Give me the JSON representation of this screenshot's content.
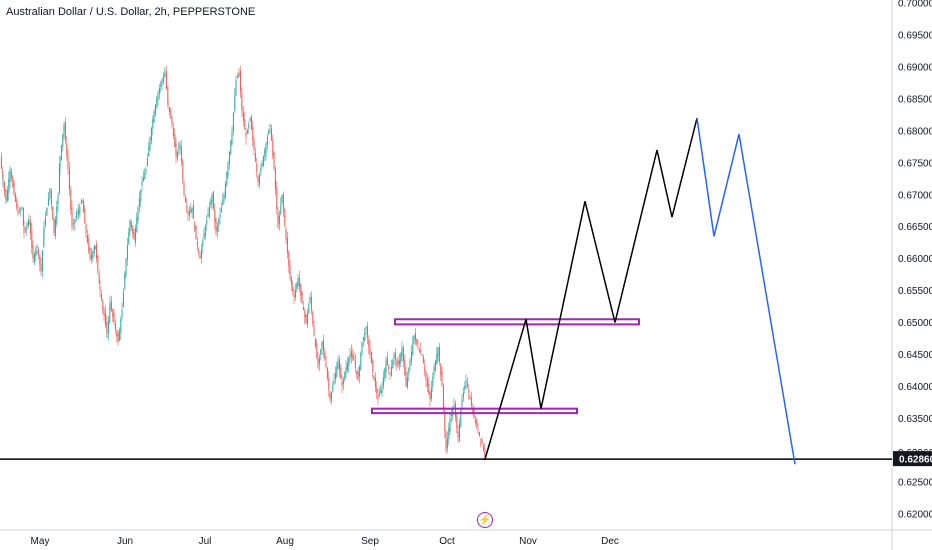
{
  "header": {
    "title": "Australian Dollar / U.S. Dollar, 2h, PEPPERSTONE"
  },
  "chart_data": {
    "type": "line",
    "title": "Australian Dollar / U.S. Dollar, 2h, PEPPERSTONE",
    "ylim": [
      0.6175,
      0.7005
    ],
    "y_ticks": [
      "0.70000",
      "0.69500",
      "0.69000",
      "0.68500",
      "0.68000",
      "0.67500",
      "0.67000",
      "0.66500",
      "0.66000",
      "0.65500",
      "0.65000",
      "0.64500",
      "0.64000",
      "0.63500",
      "0.62963",
      "0.62500",
      "0.62000"
    ],
    "price_label": "0.62860",
    "x_ticks": [
      "May",
      "Jun",
      "Jul",
      "Aug",
      "Sep",
      "Oct",
      "Nov",
      "Dec"
    ],
    "colors": {
      "up": "#26a69a",
      "down": "#ef5350",
      "projection_black": "#000000",
      "projection_blue": "#2962ff",
      "zone": "#9c27b0",
      "price_bg": "#131722"
    },
    "horizontal_line": 0.6286,
    "price_series": {
      "t": [
        0,
        3,
        6,
        10,
        14,
        18,
        22,
        24,
        29,
        33,
        37,
        41,
        44,
        47,
        50,
        54,
        58,
        60,
        64,
        68,
        72,
        77,
        82,
        86,
        90,
        95,
        100,
        104,
        107,
        110,
        114,
        118,
        122,
        126,
        130,
        134,
        138,
        142,
        146,
        150,
        154,
        158,
        162,
        165,
        168,
        172,
        176,
        180,
        184,
        188,
        192,
        196,
        200,
        204,
        208,
        212,
        216,
        220,
        224,
        228,
        232,
        236,
        239,
        242,
        246,
        250,
        254,
        258,
        262,
        266,
        270,
        274,
        278,
        282,
        286,
        290,
        294,
        298,
        302,
        306,
        310,
        314,
        318,
        322,
        326,
        330,
        334,
        338,
        342,
        346,
        350,
        354,
        358,
        362,
        366,
        370,
        374,
        378,
        382,
        386,
        390,
        394,
        398,
        402,
        406,
        410,
        414,
        418,
        422,
        426,
        430,
        434,
        438,
        442,
        446,
        450,
        454,
        458,
        462,
        466,
        470,
        474,
        478,
        482,
        485
      ],
      "y": [
        0.676,
        0.672,
        0.669,
        0.674,
        0.67,
        0.667,
        0.668,
        0.664,
        0.666,
        0.66,
        0.662,
        0.658,
        0.665,
        0.668,
        0.671,
        0.664,
        0.67,
        0.676,
        0.681,
        0.674,
        0.665,
        0.667,
        0.669,
        0.664,
        0.66,
        0.662,
        0.655,
        0.651,
        0.648,
        0.653,
        0.65,
        0.647,
        0.652,
        0.66,
        0.666,
        0.663,
        0.668,
        0.672,
        0.674,
        0.679,
        0.683,
        0.686,
        0.688,
        0.689,
        0.684,
        0.681,
        0.676,
        0.678,
        0.67,
        0.667,
        0.668,
        0.663,
        0.66,
        0.664,
        0.667,
        0.67,
        0.664,
        0.667,
        0.67,
        0.675,
        0.68,
        0.688,
        0.689,
        0.683,
        0.679,
        0.682,
        0.677,
        0.672,
        0.675,
        0.678,
        0.681,
        0.674,
        0.665,
        0.67,
        0.663,
        0.657,
        0.654,
        0.657,
        0.653,
        0.65,
        0.654,
        0.648,
        0.643,
        0.647,
        0.643,
        0.638,
        0.641,
        0.644,
        0.64,
        0.643,
        0.645,
        0.644,
        0.641,
        0.647,
        0.649,
        0.645,
        0.641,
        0.638,
        0.64,
        0.644,
        0.642,
        0.645,
        0.643,
        0.646,
        0.64,
        0.644,
        0.648,
        0.646,
        0.645,
        0.641,
        0.638,
        0.643,
        0.646,
        0.64,
        0.63,
        0.635,
        0.637,
        0.632,
        0.638,
        0.641,
        0.638,
        0.635,
        0.633,
        0.631,
        0.629
      ]
    },
    "projection_black": {
      "t": [
        485,
        526,
        541,
        585,
        615,
        657,
        672,
        697
      ],
      "y": [
        0.6286,
        0.6505,
        0.6365,
        0.669,
        0.65,
        0.677,
        0.6665,
        0.682
      ]
    },
    "projection_blue": {
      "t": [
        697,
        714,
        739,
        795
      ],
      "y": [
        0.682,
        0.6635,
        0.6795,
        0.6278
      ]
    },
    "zones": [
      {
        "t0": 395,
        "t1": 639,
        "y0": 0.6497,
        "y1": 0.6505
      },
      {
        "t0": 372,
        "t1": 577,
        "y0": 0.6358,
        "y1": 0.6365
      }
    ]
  }
}
